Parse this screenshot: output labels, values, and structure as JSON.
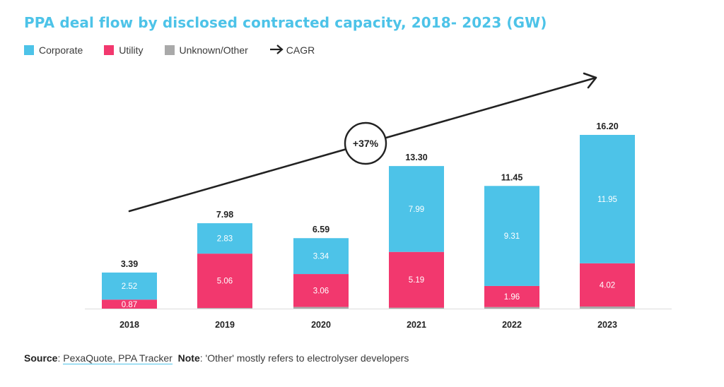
{
  "title": "PPA deal flow by disclosed contracted capacity, 2018- 2023 (GW)",
  "legend": [
    {
      "label": "Corporate",
      "color": "#4dc3e8",
      "icon": "square"
    },
    {
      "label": "Utility",
      "color": "#f2386e",
      "icon": "square"
    },
    {
      "label": "Unknown/Other",
      "color": "#a9a9a9",
      "icon": "square"
    },
    {
      "label": "CAGR",
      "color": "#222222",
      "icon": "arrow-right-icon"
    }
  ],
  "cagr_label": "+37%",
  "footer": {
    "source_label": "Source",
    "source_text": "PexaQuote, PPA Tracker",
    "note_label": "Note",
    "note_text": ": 'Other' mostly refers to electrolyser developers"
  },
  "chart_data": {
    "type": "bar",
    "stacked": true,
    "categories": [
      "2018",
      "2019",
      "2020",
      "2021",
      "2022",
      "2023"
    ],
    "series": [
      {
        "name": "Unknown/Other",
        "color": "#a9a9a9",
        "values": [
          0.0,
          0.09,
          0.19,
          0.12,
          0.18,
          0.23
        ],
        "labels": [
          "",
          "",
          "",
          "",
          "",
          ""
        ]
      },
      {
        "name": "Utility",
        "color": "#f2386e",
        "values": [
          0.87,
          5.06,
          3.06,
          5.19,
          1.96,
          4.02
        ],
        "labels": [
          "0.87",
          "5.06",
          "3.06",
          "5.19",
          "1.96",
          "4.02"
        ]
      },
      {
        "name": "Corporate",
        "color": "#4dc3e8",
        "values": [
          2.52,
          2.83,
          3.34,
          7.99,
          9.31,
          11.95
        ],
        "labels": [
          "2.52",
          "2.83",
          "3.34",
          "7.99",
          "9.31",
          "11.95"
        ]
      }
    ],
    "totals": [
      "3.39",
      "7.98",
      "6.59",
      "13.30",
      "11.45",
      "16.20"
    ],
    "ylim": [
      0,
      16.2
    ],
    "xlabel": "",
    "ylabel": "",
    "grid": false
  }
}
